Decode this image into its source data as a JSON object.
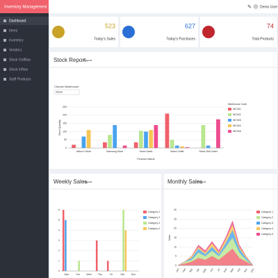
{
  "sidebar": {
    "brand": "Inventory Management",
    "menu": [
      "Dashboard",
      "Items",
      "Inventory",
      "Vendors",
      "Stock Outflow",
      "Stock Inflow",
      "Staff Products"
    ]
  },
  "header": {
    "user": "Demo User"
  },
  "cards": [
    {
      "value": "523",
      "label": "Today's Sales",
      "color": "#c9a227"
    },
    {
      "value": "627",
      "label": "Today's Purchases",
      "color": "#2a6fd6"
    },
    {
      "value": "74",
      "label": "Total Products",
      "color": "#c0262d"
    }
  ],
  "panels": {
    "stock": {
      "title": "Stock Report",
      "button": "Report",
      "filter_label": "Choose Warehouse",
      "filter_value": "Stock"
    },
    "weekly": {
      "title": "Weekly Sales",
      "button": "Report"
    },
    "monthly": {
      "title": "Monthly Sales",
      "button": "Report"
    }
  },
  "chart_data": [
    {
      "type": "bar",
      "y_label": "Stock Quantity",
      "x_label": "Product Name",
      "legend_title": "Warehouse Code",
      "categories": [
        "Arthur's Store",
        "Samsung Store",
        "Sears Sales",
        "Sears Outlet",
        "Sears Sell Outlet"
      ],
      "series": [
        {
          "name": "WC001",
          "color": "#f0616b",
          "values": [
            20,
            35,
            35,
            210,
            0
          ]
        },
        {
          "name": "WC002",
          "color": "#b9e68f",
          "values": [
            0,
            80,
            105,
            50,
            140
          ]
        },
        {
          "name": "WC003",
          "color": "#4aa3ef",
          "values": [
            70,
            140,
            100,
            15,
            15
          ]
        },
        {
          "name": "WC004",
          "color": "#f8c656",
          "values": [
            110,
            0,
            110,
            10,
            0
          ]
        },
        {
          "name": "WC005",
          "color": "#ee4c8e",
          "values": [
            0,
            15,
            140,
            5,
            175
          ]
        }
      ],
      "ylim": [
        0,
        250
      ],
      "yticks": [
        0,
        50,
        100,
        150,
        200,
        250
      ],
      "grid": true
    },
    {
      "type": "bar",
      "categories": [
        "Mon",
        "Tue",
        "Wed",
        "Thu",
        "Fri",
        "Sat",
        "Sun"
      ],
      "series": [
        {
          "name": "Category 1",
          "color": "#f0616b",
          "values": [
            6,
            0,
            0,
            3,
            1,
            0,
            0
          ]
        },
        {
          "name": "Category 2",
          "color": "#4aa3ef",
          "values": [
            5,
            0,
            0,
            0,
            0,
            0,
            0
          ]
        },
        {
          "name": "Category 3",
          "color": "#b9e68f",
          "values": [
            0,
            1,
            0,
            0,
            0,
            6,
            0
          ]
        },
        {
          "name": "Category 4",
          "color": "#f8c656",
          "values": [
            0,
            0,
            0,
            0,
            0,
            4,
            0
          ]
        }
      ],
      "ylim": [
        0,
        6
      ],
      "yticks": [
        0,
        1,
        2,
        3,
        4,
        5,
        6
      ],
      "grid": true
    },
    {
      "type": "area",
      "y_label": "Sales",
      "categories": [
        "Jan",
        "Feb",
        "Mar",
        "Apr",
        "May",
        "Jun",
        "Jul",
        "Aug",
        "Sep",
        "Oct",
        "Nov",
        "Dec"
      ],
      "series": [
        {
          "name": "Category 1",
          "color": "#f0616b",
          "values": [
            0,
            1,
            2,
            4,
            3,
            5,
            3,
            6,
            9,
            4,
            2,
            0
          ]
        },
        {
          "name": "Category 2",
          "color": "#b9e68f",
          "values": [
            0,
            1,
            1,
            3,
            2,
            3,
            2,
            4,
            6,
            3,
            1,
            0
          ]
        },
        {
          "name": "Category 3",
          "color": "#4aa3ef",
          "values": [
            0,
            0,
            1,
            2,
            1,
            2,
            1,
            2,
            4,
            2,
            1,
            0
          ]
        },
        {
          "name": "Category 4",
          "color": "#f8c656",
          "values": [
            0,
            0,
            1,
            1,
            1,
            2,
            1,
            2,
            3,
            1,
            1,
            0
          ]
        },
        {
          "name": "Category 5",
          "color": "#ee4c8e",
          "values": [
            0,
            0,
            0,
            1,
            1,
            1,
            1,
            1,
            2,
            1,
            0,
            0
          ]
        }
      ],
      "ylim": [
        0,
        30
      ],
      "yticks": [
        0,
        5,
        10,
        15,
        20,
        25,
        30
      ],
      "grid": true
    }
  ]
}
